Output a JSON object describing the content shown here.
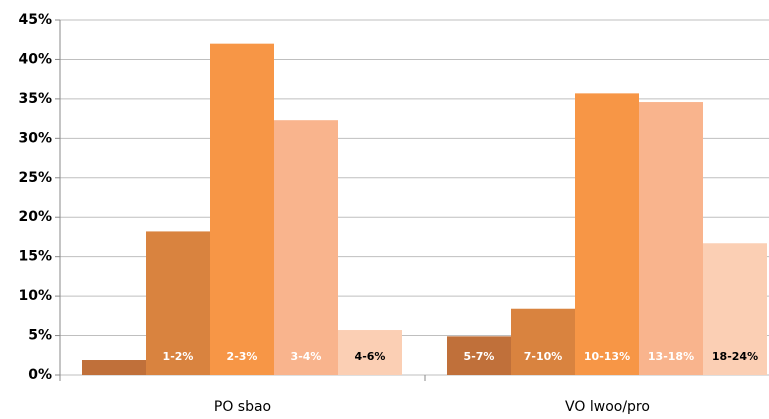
{
  "chart_data": {
    "type": "bar",
    "categories": [
      "PO sbao",
      "VO lwoo/pro"
    ],
    "series": [
      {
        "color": "#c0703a",
        "label_color": "#ffffff",
        "values": [
          1.9,
          4.9
        ],
        "labels": [
          null,
          "5-7%"
        ]
      },
      {
        "color": "#d9833f",
        "label_color": "#ffffff",
        "values": [
          18.2,
          8.4
        ],
        "labels": [
          "1-2%",
          "7-10%"
        ]
      },
      {
        "color": "#f79646",
        "label_color": "#ffffff",
        "values": [
          42,
          35.7
        ],
        "labels": [
          "2-3%",
          "10-13%"
        ]
      },
      {
        "color": "#f9b48d",
        "label_color": "#ffffff",
        "values": [
          32.3,
          34.6
        ],
        "labels": [
          "3-4%",
          "13-18%"
        ]
      },
      {
        "color": "#fbcfb4",
        "label_color": "#000000",
        "values": [
          5.7,
          16.7
        ],
        "labels": [
          "4-6%",
          "18-24%"
        ]
      }
    ],
    "ylim": [
      0,
      45
    ],
    "yticks": [
      {
        "value": 0,
        "label": "0%"
      },
      {
        "value": 5,
        "label": "5%"
      },
      {
        "value": 10,
        "label": "10%"
      },
      {
        "value": 15,
        "label": "15%"
      },
      {
        "value": 20,
        "label": "20%"
      },
      {
        "value": 25,
        "label": "25%"
      },
      {
        "value": 30,
        "label": "30%"
      },
      {
        "value": 35,
        "label": "35%"
      },
      {
        "value": 40,
        "label": "40%"
      },
      {
        "value": 45,
        "label": "45%"
      }
    ],
    "grid": true
  }
}
